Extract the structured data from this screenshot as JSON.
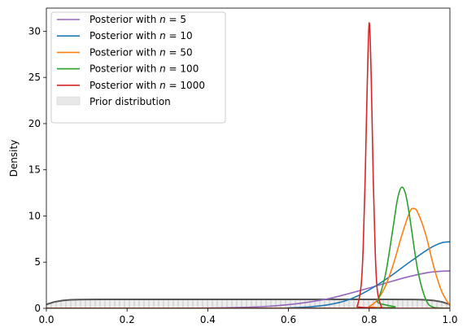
{
  "chart_data": {
    "type": "line",
    "title": "",
    "xlabel": "",
    "ylabel": "Density",
    "xlim": [
      0.0,
      1.0
    ],
    "ylim": [
      0,
      32.5
    ],
    "x_ticks": [
      "0.0",
      "0.2",
      "0.4",
      "0.6",
      "0.8",
      "1.0"
    ],
    "y_ticks": [
      "0",
      "5",
      "10",
      "15",
      "20",
      "25",
      "30"
    ],
    "grid": false,
    "legend_position": "upper-left",
    "prior": {
      "name": "Prior distribution",
      "color": "#555555",
      "fill": "#e8e8e8",
      "x": [
        0.0,
        0.02,
        0.04,
        0.06,
        0.08,
        0.1,
        0.15,
        0.2,
        0.3,
        0.4,
        0.5,
        0.6,
        0.7,
        0.8,
        0.85,
        0.9,
        0.92,
        0.94,
        0.96,
        0.98,
        1.0
      ],
      "y": [
        0.42,
        0.7,
        0.85,
        0.92,
        0.95,
        0.96,
        0.97,
        0.97,
        0.97,
        0.97,
        0.97,
        0.97,
        0.97,
        0.97,
        0.97,
        0.96,
        0.95,
        0.92,
        0.85,
        0.7,
        0.42
      ]
    },
    "series": [
      {
        "name": "Posterior with $n = 5$",
        "legend_prefix": "Posterior with ",
        "legend_math": "n",
        "legend_suffix": " = 5",
        "color": "#9467bd",
        "x": [
          0.0,
          0.3,
          0.4,
          0.5,
          0.55,
          0.6,
          0.65,
          0.7,
          0.75,
          0.8,
          0.85,
          0.9,
          0.95,
          0.98,
          1.0
        ],
        "y": [
          0.0,
          0.0,
          0.03,
          0.12,
          0.22,
          0.4,
          0.68,
          1.05,
          1.6,
          2.2,
          2.85,
          3.45,
          3.9,
          4.02,
          4.05
        ]
      },
      {
        "name": "Posterior with $n = 10$",
        "legend_prefix": "Posterior with ",
        "legend_math": "n",
        "legend_suffix": " = 10",
        "color": "#1f77b4",
        "x": [
          0.0,
          0.55,
          0.6,
          0.65,
          0.7,
          0.75,
          0.8,
          0.85,
          0.9,
          0.95,
          0.98,
          1.0
        ],
        "y": [
          0.0,
          0.0,
          0.05,
          0.15,
          0.4,
          0.95,
          2.0,
          3.4,
          5.0,
          6.5,
          7.1,
          7.2
        ]
      },
      {
        "name": "Posterior with $n = 50$",
        "legend_prefix": "Posterior with ",
        "legend_math": "n",
        "legend_suffix": " = 50",
        "color": "#ff7f0e",
        "x": [
          0.0,
          0.78,
          0.8,
          0.82,
          0.84,
          0.86,
          0.88,
          0.9,
          0.91,
          0.92,
          0.94,
          0.96,
          0.98,
          1.0
        ],
        "y": [
          0.0,
          0.0,
          0.2,
          0.9,
          2.4,
          4.8,
          7.8,
          10.4,
          10.8,
          10.4,
          8.0,
          4.5,
          1.8,
          0.3
        ]
      },
      {
        "name": "Posterior with $n = 100$",
        "legend_prefix": "Posterior with ",
        "legend_math": "n",
        "legend_suffix": " = 100",
        "color": "#2ca02c",
        "x": [
          0.0,
          0.8,
          0.82,
          0.84,
          0.86,
          0.87,
          0.88,
          0.89,
          0.9,
          0.92,
          0.94,
          0.96,
          1.0
        ],
        "y": [
          0.0,
          0.0,
          0.8,
          3.6,
          9.0,
          11.8,
          13.1,
          12.4,
          10.0,
          4.2,
          1.0,
          0.1,
          0.0
        ]
      },
      {
        "name": "Posterior with $n = 1000$",
        "legend_prefix": "Posterior with ",
        "legend_math": "n",
        "legend_suffix": " = 1000",
        "color": "#d62728",
        "x": [
          0.0,
          0.76,
          0.77,
          0.78,
          0.785,
          0.79,
          0.795,
          0.8,
          0.805,
          0.81,
          0.815,
          0.82,
          0.83,
          0.84,
          1.0
        ],
        "y": [
          0.0,
          0.0,
          0.2,
          2.5,
          6.5,
          14.0,
          24.0,
          30.9,
          25.0,
          14.0,
          6.0,
          2.0,
          0.2,
          0.0,
          0.0
        ]
      }
    ]
  }
}
